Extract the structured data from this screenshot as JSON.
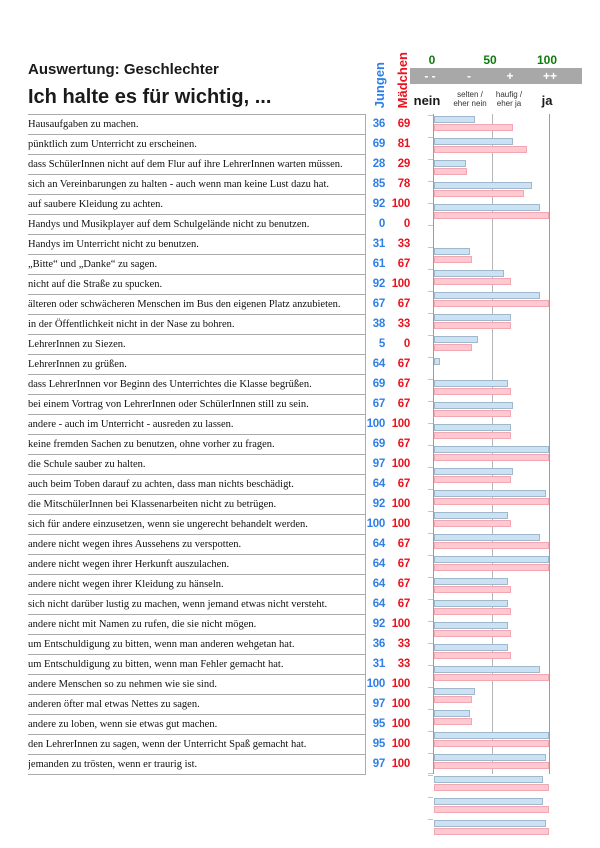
{
  "header": {
    "title": "Auswertung: Geschlechter",
    "subtitle": "Ich halte es für wichtig, ...",
    "col_jungen": "Jungen",
    "col_maedchen": "Mädchen"
  },
  "scale": {
    "ticks": [
      "0",
      "50",
      "100"
    ],
    "band_labels": [
      "- -",
      "-",
      "+",
      "++"
    ],
    "category_labels": [
      "nein",
      "selten /\neher nein",
      "haufig /\neher ja",
      "ja"
    ]
  },
  "colors": {
    "jungen_text": "#2E7FE8",
    "maedchen_text": "#E8131F",
    "jungen_bar_fill": "#CBE1F4",
    "jungen_bar_border": "#9FB8CC",
    "maedchen_bar_fill": "#FFC9D1",
    "maedchen_bar_border": "#F2A7B2",
    "scale_number": "#0E7A0E",
    "band_bg": "#A8A8A8",
    "band_text": "#FFFFFF",
    "grid": "#B5B5B5",
    "axis": "#9C9C9C",
    "tick": "#C4C4C4",
    "rule": "#ABABAB"
  },
  "chart_data": {
    "type": "bar",
    "orientation": "horizontal",
    "title": "Auswertung: Geschlechter",
    "subtitle": "Ich halte es für wichtig, ...",
    "xlabel": "",
    "ylabel": "",
    "xlim": [
      0,
      100
    ],
    "x_ticks": [
      0,
      50,
      100
    ],
    "grid": "vertical line at 50",
    "legend_position": "column headers top",
    "categories": [
      "Hausaufgaben zu machen.",
      "pünktlich zum Unterricht zu erscheinen.",
      "dass SchülerInnen nicht auf dem Flur auf ihre LehrerInnen warten müssen.",
      "sich an Vereinbarungen zu halten - auch wenn man keine Lust dazu hat.",
      "auf saubere Kleidung zu achten.",
      "Handys und Musikplayer auf dem Schulgelände nicht zu benutzen.",
      "Handys im Unterricht nicht zu benutzen.",
      "„Bitte“ und „Danke“ zu sagen.",
      "nicht auf die Straße zu spucken.",
      "älteren oder schwächeren Menschen im Bus den eigenen Platz anzubieten.",
      "in der Öffentlichkeit nicht in der Nase zu bohren.",
      "LehrerInnen zu Siezen.",
      "LehrerInnen zu grüßen.",
      "dass LehrerInnen vor Beginn des Unterrichtes die Klasse begrüßen.",
      "bei einem Vortrag von LehrerInnen oder SchülerInnen still zu sein.",
      "andere - auch im Unterricht - ausreden zu lassen.",
      "keine fremden Sachen zu benutzen, ohne vorher zu fragen.",
      "die Schule sauber zu halten.",
      "auch beim Toben darauf zu achten, dass man nichts beschädigt.",
      "die MitschülerInnen bei Klassenarbeiten nicht zu betrügen.",
      "sich für andere einzusetzen, wenn sie ungerecht behandelt werden.",
      "andere nicht wegen ihres Aussehens zu verspotten.",
      "andere nicht wegen ihrer Herkunft auszulachen.",
      "andere nicht wegen ihrer Kleidung zu hänseln.",
      "sich nicht darüber lustig zu machen, wenn jemand etwas nicht versteht.",
      "andere nicht mit Namen zu rufen, die sie nicht mögen.",
      "um Entschuldigung zu bitten, wenn man anderen wehgetan hat.",
      "um Entschuldigung zu bitten, wenn man Fehler gemacht hat.",
      "andere Menschen so zu nehmen wie sie sind.",
      "anderen öfter mal etwas Nettes zu sagen.",
      "andere zu loben, wenn sie etwas gut machen.",
      "den LehrerInnen zu sagen, wenn der Unterricht Spaß gemacht hat.",
      "jemanden zu trösten, wenn er traurig ist."
    ],
    "series": [
      {
        "name": "Jungen",
        "values": [
          36,
          69,
          28,
          85,
          92,
          0,
          31,
          61,
          92,
          67,
          38,
          5,
          64,
          69,
          67,
          100,
          69,
          97,
          64,
          92,
          100,
          64,
          64,
          64,
          64,
          92,
          36,
          31,
          100,
          97,
          95,
          95,
          97
        ]
      },
      {
        "name": "Mädchen",
        "values": [
          69,
          81,
          29,
          78,
          100,
          0,
          33,
          67,
          100,
          67,
          33,
          0,
          67,
          67,
          67,
          100,
          67,
          100,
          67,
          100,
          100,
          67,
          67,
          67,
          67,
          100,
          33,
          33,
          100,
          100,
          100,
          100,
          100
        ]
      }
    ]
  }
}
